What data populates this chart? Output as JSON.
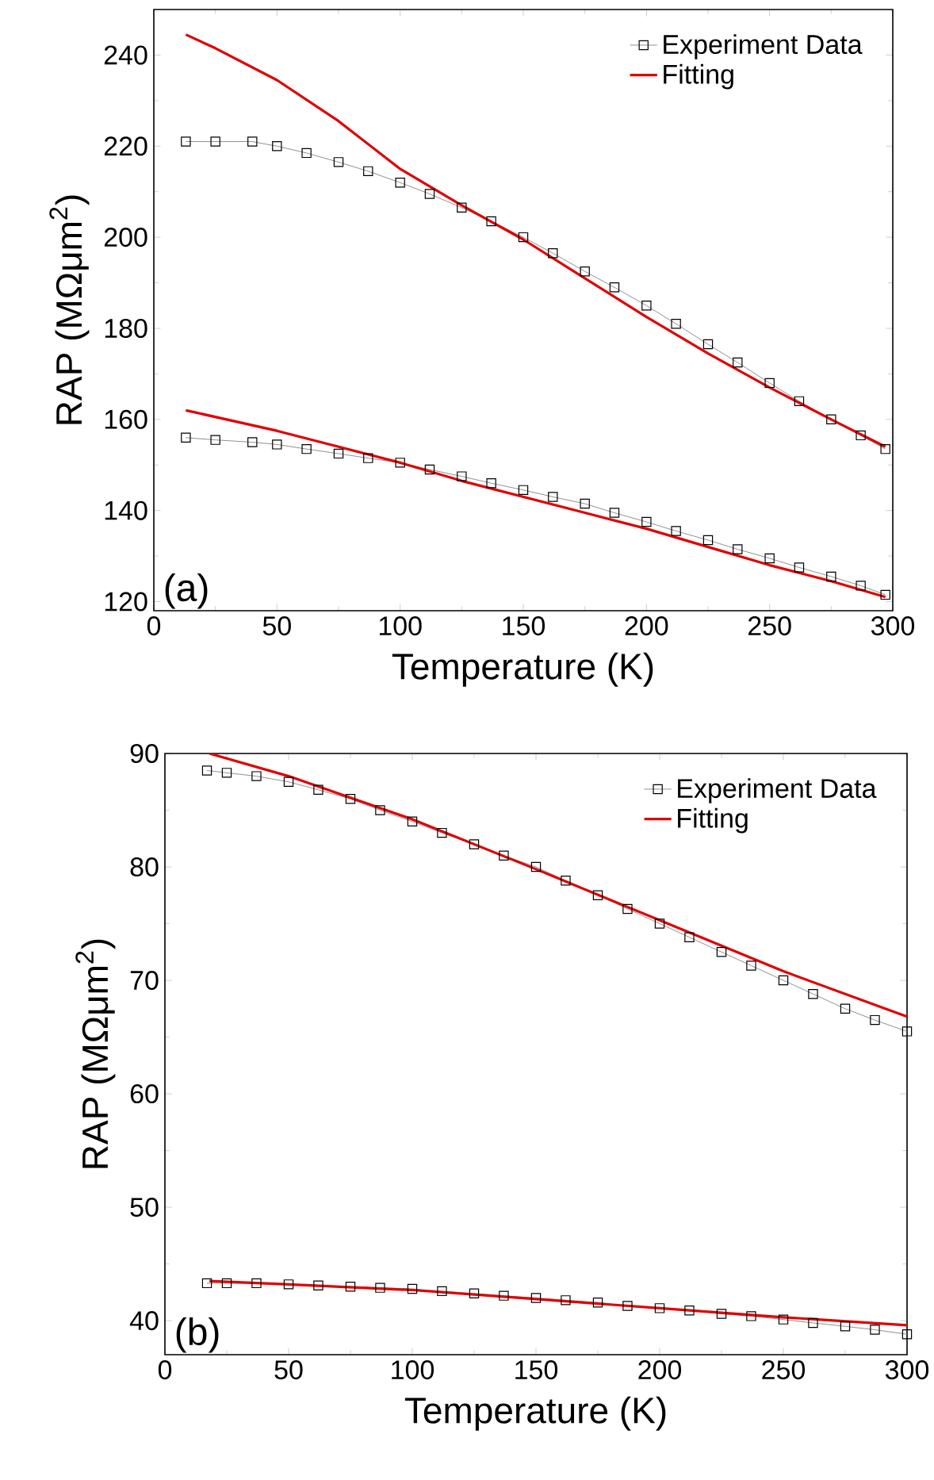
{
  "chart_data": [
    {
      "type": "line",
      "xlabel": "Temperature (K)",
      "ylabel": "RAP (MΩμm$^{2}$)",
      "xlim": [
        0,
        300
      ],
      "ylim": [
        118,
        250
      ],
      "xticks": [
        0,
        50,
        100,
        150,
        200,
        250,
        300
      ],
      "yticks": [
        120,
        140,
        160,
        180,
        200,
        220,
        240
      ],
      "legend": "top right",
      "annotations": [
        "(a)"
      ],
      "series": [
        {
          "name": "Experiment Data",
          "color": "#000000",
          "marker": "square",
          "x": [
            13,
            25,
            40,
            50,
            62,
            75,
            87,
            100,
            112,
            125,
            137,
            150,
            162,
            175,
            187,
            200,
            212,
            225,
            237,
            250,
            262,
            275,
            287,
            297
          ],
          "values": [
            221,
            221,
            221,
            220,
            218.5,
            216.5,
            214.5,
            212,
            209.5,
            206.5,
            203.5,
            200,
            196.5,
            192.5,
            189,
            185,
            181,
            176.5,
            172.5,
            168,
            164,
            160,
            156.5,
            153.5
          ]
        },
        {
          "name": "Fitting",
          "color": "#e00000",
          "marker": "none",
          "x": [
            13,
            25,
            50,
            75,
            100,
            125,
            150,
            175,
            200,
            225,
            250,
            275,
            297
          ],
          "values": [
            244.5,
            241.5,
            234.5,
            225.5,
            215,
            207,
            199.5,
            191,
            182.5,
            174.5,
            167,
            160,
            154
          ]
        },
        {
          "color": "#000000",
          "marker": "square",
          "x": [
            13,
            25,
            40,
            50,
            62,
            75,
            87,
            100,
            112,
            125,
            137,
            150,
            162,
            175,
            187,
            200,
            212,
            225,
            237,
            250,
            262,
            275,
            287,
            297
          ],
          "values": [
            156,
            155.5,
            155,
            154.5,
            153.5,
            152.5,
            151.5,
            150.5,
            149,
            147.5,
            146,
            144.5,
            143,
            141.5,
            139.5,
            137.5,
            135.5,
            133.5,
            131.5,
            129.5,
            127.5,
            125.5,
            123.5,
            121.5
          ]
        },
        {
          "color": "#e00000",
          "marker": "none",
          "x": [
            13,
            50,
            75,
            100,
            125,
            150,
            175,
            200,
            225,
            250,
            275,
            297
          ],
          "values": [
            162,
            157.5,
            154,
            150.5,
            146.5,
            143,
            139.5,
            136,
            132,
            128,
            124.5,
            121
          ]
        }
      ]
    },
    {
      "type": "line",
      "xlabel": "Temperature (K)",
      "ylabel": "RAP (MΩμm$^{2}$)",
      "xlim": [
        0,
        300
      ],
      "ylim": [
        37,
        90
      ],
      "xticks": [
        0,
        50,
        100,
        150,
        200,
        250,
        300
      ],
      "yticks": [
        40,
        50,
        60,
        70,
        80,
        90
      ],
      "legend": "top right",
      "annotations": [
        "(b)"
      ],
      "series": [
        {
          "name": "Experiment Data",
          "color": "#000000",
          "marker": "square",
          "x": [
            17,
            25,
            37,
            50,
            62,
            75,
            87,
            100,
            112,
            125,
            137,
            150,
            162,
            175,
            187,
            200,
            212,
            225,
            237,
            250,
            262,
            275,
            287,
            300
          ],
          "values": [
            88.5,
            88.3,
            88,
            87.5,
            86.8,
            86,
            85,
            84,
            83,
            82,
            81,
            80,
            78.8,
            77.5,
            76.3,
            75,
            73.8,
            72.5,
            71.3,
            70,
            68.8,
            67.5,
            66.5,
            65.5
          ]
        },
        {
          "name": "Fitting",
          "color": "#e00000",
          "marker": "none",
          "x": [
            18,
            50,
            100,
            150,
            200,
            250,
            300
          ],
          "values": [
            90,
            88,
            84.2,
            79.8,
            75.3,
            70.8,
            66.8
          ]
        },
        {
          "color": "#000000",
          "marker": "square",
          "x": [
            17,
            25,
            37,
            50,
            62,
            75,
            87,
            100,
            112,
            125,
            137,
            150,
            162,
            175,
            187,
            200,
            212,
            225,
            237,
            250,
            262,
            275,
            287,
            300
          ],
          "values": [
            43.3,
            43.3,
            43.3,
            43.2,
            43.1,
            43,
            42.9,
            42.8,
            42.6,
            42.4,
            42.2,
            42,
            41.8,
            41.6,
            41.3,
            41.1,
            40.9,
            40.6,
            40.4,
            40.1,
            39.8,
            39.5,
            39.2,
            38.8
          ]
        },
        {
          "color": "#e00000",
          "marker": "none",
          "x": [
            18,
            50,
            100,
            150,
            200,
            250,
            300
          ],
          "values": [
            43.5,
            43.2,
            42.7,
            41.9,
            41.1,
            40.3,
            39.6
          ]
        }
      ]
    }
  ]
}
